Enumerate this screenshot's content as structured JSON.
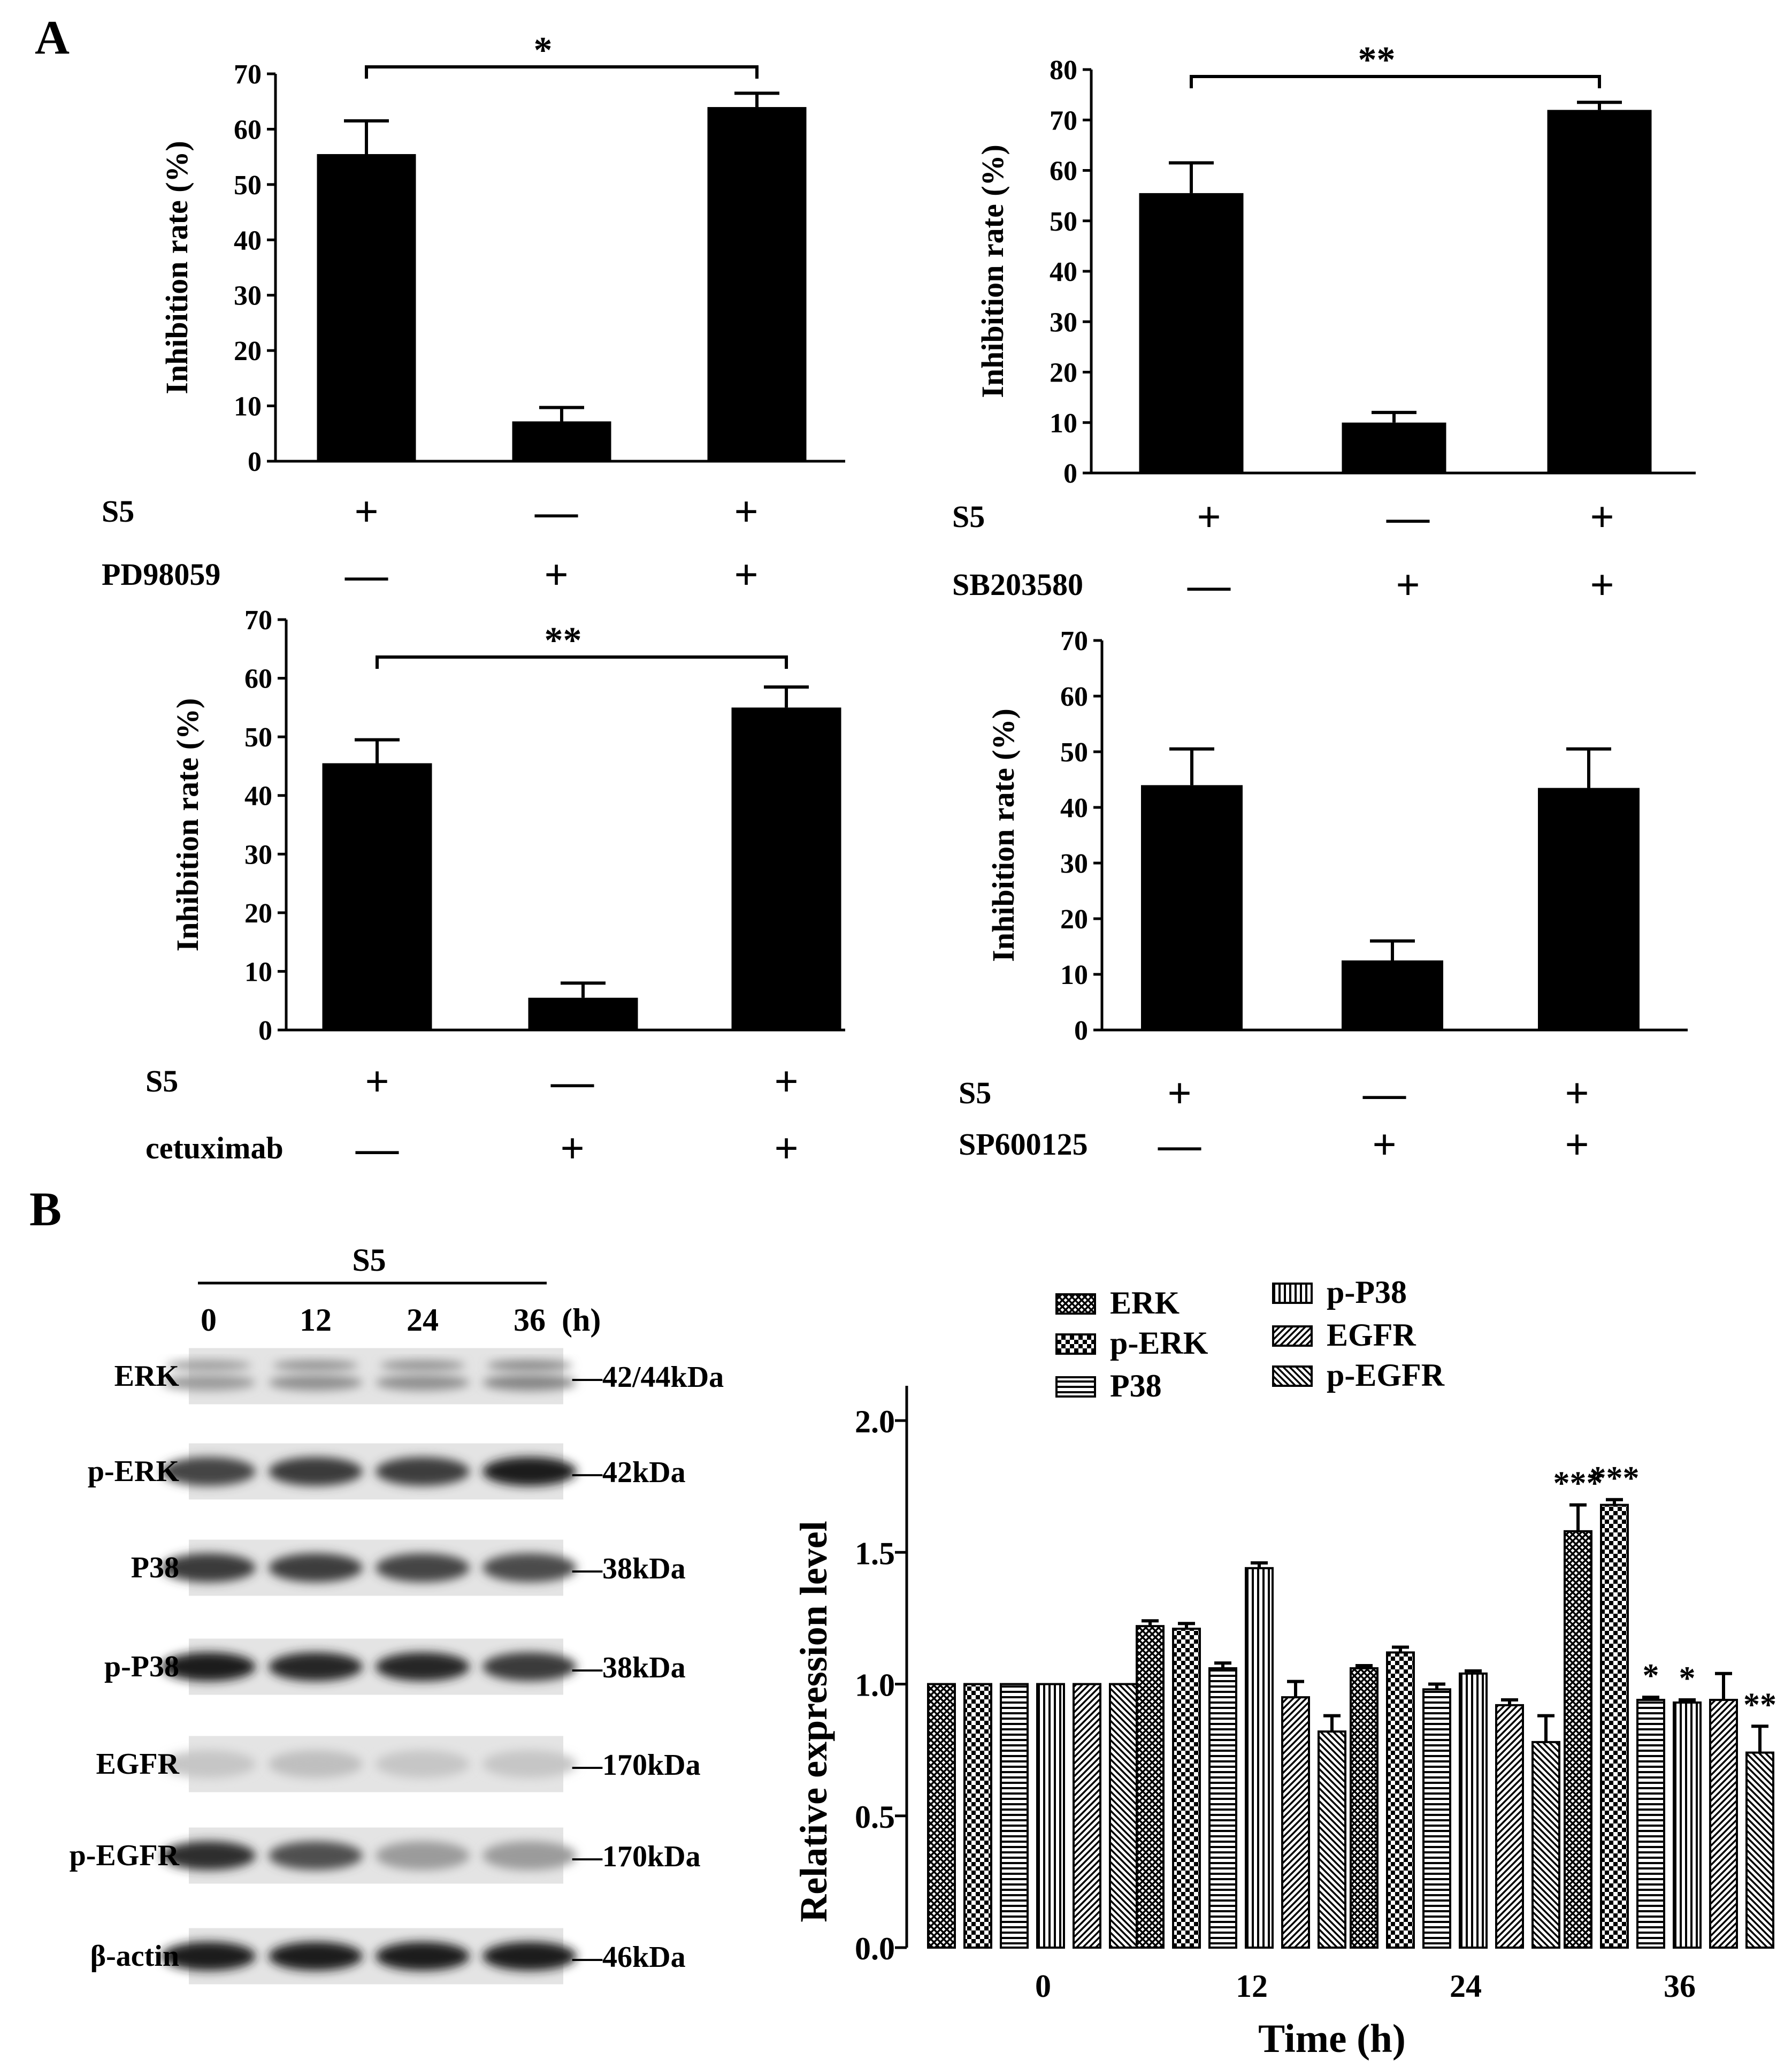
{
  "panel_labels": {
    "a": "A",
    "b": "B"
  },
  "chart_data": [
    {
      "id": "a1",
      "type": "bar",
      "ylabel": "Inhibition rate (%)",
      "ylim": [
        0,
        70
      ],
      "yticks": [
        "0",
        "10",
        "20",
        "30",
        "40",
        "50",
        "60",
        "70"
      ],
      "values": [
        55.5,
        7.2,
        64.0
      ],
      "errors": [
        6.0,
        2.5,
        2.5
      ],
      "significance": {
        "from": 0,
        "to": 2,
        "label": "*"
      },
      "treatment_rows": [
        {
          "name": "S5",
          "signs": [
            "+",
            "—",
            "+"
          ]
        },
        {
          "name": "PD98059",
          "signs": [
            "—",
            "+",
            "+"
          ]
        }
      ]
    },
    {
      "id": "a2",
      "type": "bar",
      "ylabel": "Inhibition rate (%)",
      "ylim": [
        0,
        80
      ],
      "yticks": [
        "0",
        "10",
        "20",
        "30",
        "40",
        "50",
        "60",
        "70",
        "80"
      ],
      "values": [
        55.5,
        10.0,
        72.0
      ],
      "errors": [
        6.0,
        2.0,
        1.5
      ],
      "significance": {
        "from": 0,
        "to": 2,
        "label": "**"
      },
      "treatment_rows": [
        {
          "name": "S5",
          "signs": [
            "+",
            "—",
            "+"
          ]
        },
        {
          "name": "SB203580",
          "signs": [
            "—",
            "+",
            "+"
          ]
        }
      ]
    },
    {
      "id": "a3",
      "type": "bar",
      "ylabel": "Inhibition rate (%)",
      "ylim": [
        0,
        70
      ],
      "yticks": [
        "0",
        "10",
        "20",
        "30",
        "40",
        "50",
        "60",
        "70"
      ],
      "values": [
        45.5,
        5.5,
        55.0
      ],
      "errors": [
        4.0,
        2.5,
        3.5
      ],
      "significance": {
        "from": 0,
        "to": 2,
        "label": "**"
      },
      "treatment_rows": [
        {
          "name": "S5",
          "signs": [
            "+",
            "—",
            "+"
          ]
        },
        {
          "name": "cetuximab",
          "signs": [
            "—",
            "+",
            "+"
          ]
        }
      ]
    },
    {
      "id": "a4",
      "type": "bar",
      "ylabel": "Inhibition rate (%)",
      "ylim": [
        0,
        70
      ],
      "yticks": [
        "0",
        "10",
        "20",
        "30",
        "40",
        "50",
        "60",
        "70"
      ],
      "values": [
        44.0,
        12.5,
        43.5
      ],
      "errors": [
        6.5,
        3.5,
        7.0
      ],
      "significance": null,
      "treatment_rows": [
        {
          "name": "S5",
          "signs": [
            "+",
            "—",
            "+"
          ]
        },
        {
          "name": "SP600125",
          "signs": [
            "—",
            "+",
            "+"
          ]
        }
      ]
    },
    {
      "id": "b",
      "type": "bar",
      "xlabel": "Time (h)",
      "ylabel": "Relative expression level",
      "ylim": [
        0,
        2.0
      ],
      "yticks": [
        "0.0",
        "0.5",
        "1.0",
        "1.5",
        "2.0"
      ],
      "categories": [
        "0",
        "12",
        "24",
        "36"
      ],
      "series": [
        {
          "name": "ERK",
          "pattern": "crosshatch",
          "values": [
            1.0,
            1.22,
            1.06,
            1.58
          ],
          "errors": [
            0.0,
            0.02,
            0.01,
            0.1
          ],
          "marks": [
            "",
            "",
            "",
            "***"
          ]
        },
        {
          "name": "p-ERK",
          "pattern": "checker",
          "values": [
            1.0,
            1.21,
            1.12,
            1.68
          ],
          "errors": [
            0.0,
            0.02,
            0.02,
            0.02
          ],
          "marks": [
            "",
            "",
            "",
            "***"
          ]
        },
        {
          "name": "P38",
          "pattern": "hstripe",
          "values": [
            1.0,
            1.06,
            0.98,
            0.94
          ],
          "errors": [
            0.0,
            0.02,
            0.02,
            0.01
          ],
          "marks": [
            "",
            "",
            "",
            "*"
          ]
        },
        {
          "name": "p-P38",
          "pattern": "vstripe",
          "values": [
            1.0,
            1.44,
            1.04,
            0.93
          ],
          "errors": [
            0.0,
            0.02,
            0.01,
            0.01
          ],
          "marks": [
            "",
            "",
            "",
            "*"
          ]
        },
        {
          "name": "EGFR",
          "pattern": "diagonal",
          "values": [
            1.0,
            0.95,
            0.92,
            0.94
          ],
          "errors": [
            0.0,
            0.06,
            0.02,
            0.1
          ],
          "marks": [
            "",
            "",
            "",
            ""
          ]
        },
        {
          "name": "p-EGFR",
          "pattern": "backdiag",
          "values": [
            1.0,
            0.82,
            0.78,
            0.74
          ],
          "errors": [
            0.0,
            0.06,
            0.1,
            0.1
          ],
          "marks": [
            "",
            "",
            "",
            "**"
          ]
        }
      ]
    }
  ],
  "western_blot": {
    "treatment": "S5",
    "time_points": [
      "0",
      "12",
      "24",
      "36"
    ],
    "time_unit": "(h)",
    "rows": [
      {
        "protein": "ERK",
        "size": "—42/44kDa",
        "intensity": [
          0.35,
          0.4,
          0.4,
          0.45
        ]
      },
      {
        "protein": "p-ERK",
        "size": "—42kDa",
        "intensity": [
          0.75,
          0.8,
          0.78,
          0.95
        ]
      },
      {
        "protein": "P38",
        "size": "—38kDa",
        "intensity": [
          0.8,
          0.78,
          0.75,
          0.72
        ]
      },
      {
        "protein": "p-P38",
        "size": "—38kDa",
        "intensity": [
          0.95,
          0.9,
          0.9,
          0.8
        ]
      },
      {
        "protein": "EGFR",
        "size": "—170kDa",
        "intensity": [
          0.15,
          0.18,
          0.15,
          0.15
        ]
      },
      {
        "protein": "p-EGFR",
        "size": "—170kDa",
        "intensity": [
          0.85,
          0.7,
          0.35,
          0.35
        ]
      },
      {
        "protein": "β-actin",
        "size": "—46kDa",
        "intensity": [
          0.95,
          0.95,
          0.95,
          0.95
        ]
      }
    ]
  }
}
